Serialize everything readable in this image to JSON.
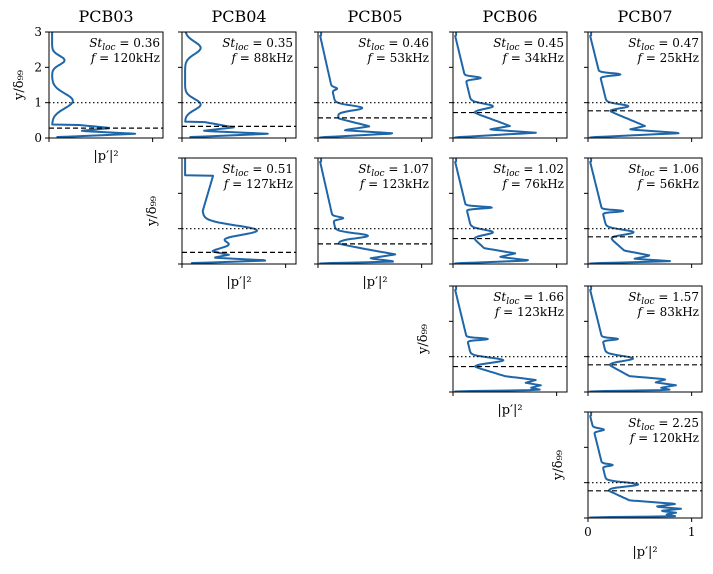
{
  "chart_data": {
    "type": "line",
    "description_of_grid": "5 columns x 4 rows of small multiples; lower-triangular layout",
    "column_titles": [
      "PCB03",
      "PCB04",
      "PCB05",
      "PCB06",
      "PCB07"
    ],
    "ylabel": "y/δ₉₉",
    "xlabel": "|p′|²",
    "xlim": [
      0,
      1.1
    ],
    "ylim": [
      0,
      3
    ],
    "shared_x_ticks": [
      "0",
      "1"
    ],
    "shared_y_ticks": [
      "0",
      "1",
      "2",
      "3"
    ],
    "panels": [
      {
        "row": 0,
        "col": 0,
        "St": "0.36",
        "f": "120kHz",
        "dotted_y": 1.0,
        "dashed_y": 0.28,
        "show_x_label": true,
        "show_y_label": true,
        "show_y_ticklabels": true,
        "profile": {
          "base": [
            [
              0.02,
              0.02
            ],
            [
              0.12,
              0.85
            ],
            [
              0.2,
              0.3
            ],
            [
              0.28,
              0.6
            ],
            [
              0.38,
              0.25
            ]
          ],
          "peaks": [
            [
              1.05,
              0.3,
              0.2
            ],
            [
              2.2,
              0.18,
              0.12
            ]
          ]
        }
      },
      {
        "row": 0,
        "col": 1,
        "St": "0.35",
        "f": "88kHz",
        "dotted_y": 1.0,
        "dashed_y": 0.33,
        "show_x_label": false,
        "show_y_label": false,
        "show_y_ticklabels": false,
        "profile": {
          "base": [
            [
              0.02,
              0.02
            ],
            [
              0.12,
              0.85
            ],
            [
              0.2,
              0.2
            ],
            [
              0.3,
              0.5
            ],
            [
              0.45,
              0.22
            ]
          ],
          "peaks": [
            [
              0.95,
              0.22,
              0.15
            ],
            [
              2.55,
              0.25,
              0.15
            ]
          ]
        }
      },
      {
        "row": 0,
        "col": 2,
        "St": "0.46",
        "f": "53kHz",
        "dotted_y": 1.0,
        "dashed_y": 0.57,
        "show_x_label": false,
        "show_y_label": false,
        "show_y_ticklabels": false,
        "profile": {
          "base": [
            [
              0.02,
              0.02
            ],
            [
              0.13,
              0.75
            ],
            [
              0.22,
              0.25
            ],
            [
              0.33,
              0.5
            ],
            [
              0.55,
              0.2
            ],
            [
              2.9,
              0.02
            ]
          ],
          "peaks": [
            [
              0.85,
              0.1,
              0.25
            ],
            [
              1.4,
              0.05,
              0.05
            ]
          ]
        }
      },
      {
        "row": 0,
        "col": 3,
        "St": "0.45",
        "f": "34kHz",
        "dotted_y": 1.0,
        "dashed_y": 0.72,
        "show_x_label": false,
        "show_y_label": false,
        "show_y_ticklabels": false,
        "profile": {
          "base": [
            [
              0.02,
              0.02
            ],
            [
              0.15,
              0.8
            ],
            [
              0.24,
              0.35
            ],
            [
              0.34,
              0.55
            ],
            [
              0.72,
              0.2
            ],
            [
              2.9,
              0.02
            ]
          ],
          "peaks": [
            [
              0.9,
              0.1,
              0.2
            ],
            [
              1.7,
              0.05,
              0.15
            ]
          ]
        }
      },
      {
        "row": 0,
        "col": 4,
        "St": "0.47",
        "f": "25kHz",
        "dotted_y": 1.0,
        "dashed_y": 0.77,
        "show_x_label": false,
        "show_y_label": false,
        "show_y_ticklabels": false,
        "profile": {
          "base": [
            [
              0.02,
              0.02
            ],
            [
              0.14,
              0.9
            ],
            [
              0.24,
              0.4
            ],
            [
              0.34,
              0.55
            ],
            [
              0.77,
              0.2
            ],
            [
              2.9,
              0.02
            ]
          ],
          "peaks": [
            [
              0.9,
              0.08,
              0.2
            ],
            [
              1.8,
              0.05,
              0.2
            ]
          ]
        }
      },
      {
        "row": 1,
        "col": 1,
        "St": "0.51",
        "f": "127kHz",
        "dotted_y": 1.0,
        "dashed_y": 0.33,
        "show_x_label": true,
        "show_y_label": true,
        "show_y_ticklabels": false,
        "profile": {
          "base": [
            [
              0.02,
              0.02
            ],
            [
              0.1,
              0.85
            ],
            [
              0.18,
              0.3
            ],
            [
              0.26,
              0.45
            ],
            [
              0.36,
              0.25
            ],
            [
              1.5,
              0.2
            ],
            [
              2.5,
              0.3
            ]
          ],
          "peaks": [
            [
              0.95,
              0.2,
              0.5
            ],
            [
              0.55,
              0.15,
              0.2
            ]
          ]
        }
      },
      {
        "row": 1,
        "col": 2,
        "St": "1.07",
        "f": "123kHz",
        "dotted_y": 1.0,
        "dashed_y": 0.57,
        "show_x_label": true,
        "show_y_label": false,
        "show_y_ticklabels": false,
        "profile": {
          "base": [
            [
              0.02,
              0.02
            ],
            [
              0.07,
              0.75
            ],
            [
              0.16,
              0.5
            ],
            [
              0.27,
              0.75
            ],
            [
              0.4,
              0.5
            ],
            [
              0.57,
              0.2
            ],
            [
              2.9,
              0.02
            ]
          ],
          "peaks": [
            [
              0.8,
              0.1,
              0.3
            ],
            [
              1.3,
              0.05,
              0.1
            ]
          ]
        }
      },
      {
        "row": 1,
        "col": 3,
        "St": "1.02",
        "f": "76kHz",
        "dotted_y": 1.0,
        "dashed_y": 0.72,
        "show_x_label": false,
        "show_y_label": false,
        "show_y_ticklabels": false,
        "profile": {
          "base": [
            [
              0.02,
              0.02
            ],
            [
              0.1,
              0.75
            ],
            [
              0.2,
              0.45
            ],
            [
              0.3,
              0.6
            ],
            [
              0.45,
              0.3
            ],
            [
              0.72,
              0.2
            ],
            [
              2.9,
              0.02
            ]
          ],
          "peaks": [
            [
              0.9,
              0.1,
              0.2
            ],
            [
              1.6,
              0.04,
              0.25
            ]
          ]
        }
      },
      {
        "row": 1,
        "col": 4,
        "St": "1.06",
        "f": "56kHz",
        "dotted_y": 1.0,
        "dashed_y": 0.77,
        "show_x_label": false,
        "show_y_label": false,
        "show_y_ticklabels": false,
        "profile": {
          "base": [
            [
              0.02,
              0.02
            ],
            [
              0.08,
              0.8
            ],
            [
              0.15,
              0.45
            ],
            [
              0.24,
              0.6
            ],
            [
              0.38,
              0.35
            ],
            [
              0.77,
              0.2
            ],
            [
              2.9,
              0.02
            ]
          ],
          "peaks": [
            [
              0.9,
              0.1,
              0.25
            ],
            [
              1.5,
              0.04,
              0.2
            ]
          ]
        }
      },
      {
        "row": 2,
        "col": 3,
        "St": "1.66",
        "f": "123kHz",
        "dotted_y": 1.0,
        "dashed_y": 0.72,
        "show_x_label": true,
        "show_y_label": true,
        "show_y_ticklabels": false,
        "profile": {
          "base": [
            [
              0.02,
              0.02
            ],
            [
              0.06,
              0.85
            ],
            [
              0.12,
              0.75
            ],
            [
              0.19,
              0.85
            ],
            [
              0.26,
              0.7
            ],
            [
              0.34,
              0.8
            ],
            [
              0.45,
              0.5
            ],
            [
              0.72,
              0.2
            ],
            [
              2.9,
              0.02
            ]
          ],
          "peaks": [
            [
              0.9,
              0.1,
              0.3
            ],
            [
              1.5,
              0.04,
              0.2
            ]
          ]
        }
      },
      {
        "row": 2,
        "col": 4,
        "St": "1.57",
        "f": "83kHz",
        "dotted_y": 1.0,
        "dashed_y": 0.77,
        "show_x_label": false,
        "show_y_label": false,
        "show_y_ticklabels": false,
        "profile": {
          "base": [
            [
              0.02,
              0.02
            ],
            [
              0.06,
              0.8
            ],
            [
              0.12,
              0.7
            ],
            [
              0.19,
              0.85
            ],
            [
              0.27,
              0.65
            ],
            [
              0.36,
              0.75
            ],
            [
              0.45,
              0.4
            ],
            [
              0.77,
              0.2
            ],
            [
              2.9,
              0.02
            ]
          ],
          "peaks": [
            [
              0.95,
              0.1,
              0.25
            ],
            [
              1.5,
              0.04,
              0.15
            ]
          ]
        }
      },
      {
        "row": 3,
        "col": 4,
        "St": "2.25",
        "f": "120kHz",
        "dotted_y": 1.0,
        "dashed_y": 0.77,
        "show_x_label": true,
        "show_y_label": true,
        "show_y_ticklabels": false,
        "profile": {
          "base": [
            [
              0.02,
              0.02
            ],
            [
              0.05,
              0.85
            ],
            [
              0.1,
              0.75
            ],
            [
              0.15,
              0.85
            ],
            [
              0.2,
              0.7
            ],
            [
              0.26,
              0.9
            ],
            [
              0.32,
              0.65
            ],
            [
              0.4,
              0.85
            ],
            [
              0.5,
              0.4
            ],
            [
              0.77,
              0.2
            ],
            [
              2.9,
              0.02
            ]
          ],
          "peaks": [
            [
              0.95,
              0.08,
              0.3
            ],
            [
              1.5,
              0.04,
              0.1
            ],
            [
              2.5,
              0.05,
              0.1
            ]
          ]
        }
      }
    ]
  }
}
